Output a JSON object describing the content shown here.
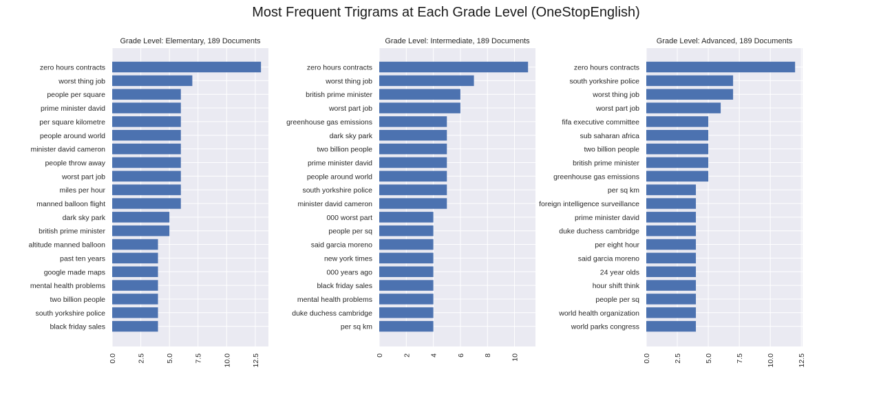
{
  "suptitle": "Most Frequent Trigrams at Each Grade Level (OneStopEnglish)",
  "colors": {
    "bar": "#4c72b0",
    "panel_bg": "#eaeaf2",
    "grid": "#ffffff"
  },
  "chart_data": [
    {
      "type": "bar",
      "orientation": "horizontal",
      "title": "Grade Level: Elementary, 189 Documents",
      "categories": [
        "zero hours contracts",
        "worst thing job",
        "people per square",
        "prime minister david",
        "per square kilometre",
        "people around world",
        "minister david cameron",
        "people throw away",
        "worst part job",
        "miles per hour",
        "manned balloon flight",
        "dark sky park",
        "british prime minister",
        "altitude manned balloon",
        "past ten years",
        "google made maps",
        "mental health problems",
        "two billion people",
        "south yorkshire police",
        "black friday sales"
      ],
      "values": [
        13,
        7,
        6,
        6,
        6,
        6,
        6,
        6,
        6,
        6,
        6,
        5,
        5,
        4,
        4,
        4,
        4,
        4,
        4,
        4
      ],
      "xlim": [
        0,
        13.65
      ],
      "xticks": [
        0,
        2.5,
        5,
        7.5,
        10,
        12.5
      ],
      "xtick_labels": [
        "0.0",
        "2.5",
        "5.0",
        "7.5",
        "10.0",
        "12.5"
      ],
      "grid": true
    },
    {
      "type": "bar",
      "orientation": "horizontal",
      "title": "Grade Level: Intermediate, 189 Documents",
      "categories": [
        "zero hours contracts",
        "worst thing job",
        "british prime minister",
        "worst part job",
        "greenhouse gas emissions",
        "dark sky park",
        "two billion people",
        "prime minister david",
        "people around world",
        "south yorkshire police",
        "minister david cameron",
        "000 worst part",
        "people per sq",
        "said garcia moreno",
        "new york times",
        "000 years ago",
        "black friday sales",
        "mental health problems",
        "duke duchess cambridge",
        "per sq km"
      ],
      "values": [
        11,
        7,
        6,
        6,
        5,
        5,
        5,
        5,
        5,
        5,
        5,
        4,
        4,
        4,
        4,
        4,
        4,
        4,
        4,
        4
      ],
      "xlim": [
        0,
        11.55
      ],
      "xticks": [
        0,
        2,
        4,
        6,
        8,
        10
      ],
      "xtick_labels": [
        "0",
        "2",
        "4",
        "6",
        "8",
        "10"
      ],
      "grid": true
    },
    {
      "type": "bar",
      "orientation": "horizontal",
      "title": "Grade Level: Advanced, 189 Documents",
      "categories": [
        "zero hours contracts",
        "south yorkshire police",
        "worst thing job",
        "worst part job",
        "fifa executive committee",
        "sub saharan africa",
        "two billion people",
        "british prime minister",
        "greenhouse gas emissions",
        "per sq km",
        "foreign intelligence surveillance",
        "prime minister david",
        "duke duchess cambridge",
        "per eight hour",
        "said garcia moreno",
        "24 year olds",
        "hour shift think",
        "people per sq",
        "world health organization",
        "world parks congress"
      ],
      "values": [
        12,
        7,
        7,
        6,
        5,
        5,
        5,
        5,
        5,
        4,
        4,
        4,
        4,
        4,
        4,
        4,
        4,
        4,
        4,
        4
      ],
      "xlim": [
        0,
        12.6
      ],
      "xticks": [
        0,
        2.5,
        5,
        7.5,
        10,
        12.5
      ],
      "xtick_labels": [
        "0.0",
        "2.5",
        "5.0",
        "7.5",
        "10.0",
        "12.5"
      ],
      "grid": true
    }
  ]
}
